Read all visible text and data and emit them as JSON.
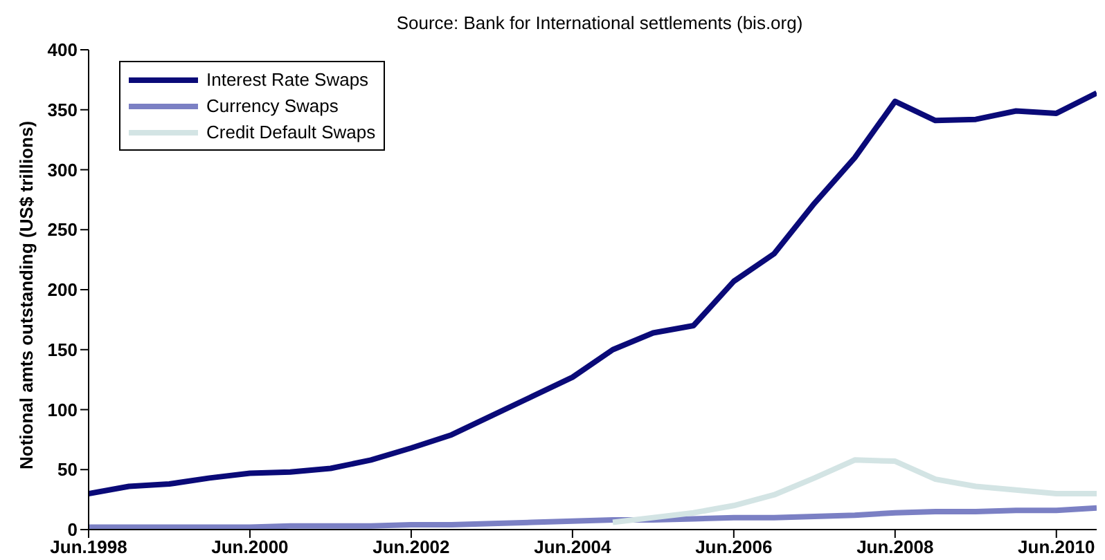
{
  "chart_data": {
    "type": "line",
    "title": "Source: Bank for International settlements (bis.org)",
    "ylabel": "Notional amts outstanding (US$ trillions)",
    "x": [
      "1998-06",
      "1998-12",
      "1999-06",
      "1999-12",
      "2000-06",
      "2000-12",
      "2001-06",
      "2001-12",
      "2002-06",
      "2002-12",
      "2003-06",
      "2003-12",
      "2004-06",
      "2004-12",
      "2005-06",
      "2005-12",
      "2006-06",
      "2006-12",
      "2007-06",
      "2007-12",
      "2008-06",
      "2008-12",
      "2009-06",
      "2009-12",
      "2010-06",
      "2010-12"
    ],
    "series": [
      {
        "name": "Interest Rate Swaps",
        "color": "#0a0a78",
        "values": [
          30,
          36,
          38,
          43,
          47,
          48,
          51,
          58,
          68,
          79,
          95,
          111,
          127,
          150,
          164,
          170,
          207,
          230,
          272,
          310,
          357,
          341,
          342,
          349,
          347,
          364
        ]
      },
      {
        "name": "Currency Swaps",
        "color": "#7b80c4",
        "values": [
          2,
          2,
          2,
          2,
          2,
          3,
          3,
          3,
          4,
          4,
          5,
          6,
          7,
          8,
          8,
          9,
          10,
          10,
          11,
          12,
          14,
          15,
          15,
          16,
          16,
          18
        ]
      },
      {
        "name": "Credit Default Swaps",
        "color": "#d3e4e4",
        "values": [
          null,
          null,
          null,
          null,
          null,
          null,
          null,
          null,
          null,
          null,
          null,
          null,
          null,
          6,
          10,
          14,
          20,
          29,
          43,
          58,
          57,
          42,
          36,
          33,
          30,
          30
        ]
      }
    ],
    "xlim": [
      "1998-06",
      "2010-12"
    ],
    "xticks": [
      {
        "value": "1998-06",
        "label": "Jun.1998"
      },
      {
        "value": "2000-06",
        "label": "Jun.2000"
      },
      {
        "value": "2002-06",
        "label": "Jun.2002"
      },
      {
        "value": "2004-06",
        "label": "Jun.2004"
      },
      {
        "value": "2006-06",
        "label": "Jun.2006"
      },
      {
        "value": "2008-06",
        "label": "Jun.2008"
      },
      {
        "value": "2010-06",
        "label": "Jun.2010"
      }
    ],
    "ylim": [
      0,
      400
    ],
    "yticks": [
      0,
      50,
      100,
      150,
      200,
      250,
      300,
      350,
      400
    ],
    "legend": "top left",
    "grid": false,
    "marker": "none",
    "line_style": "solid"
  }
}
